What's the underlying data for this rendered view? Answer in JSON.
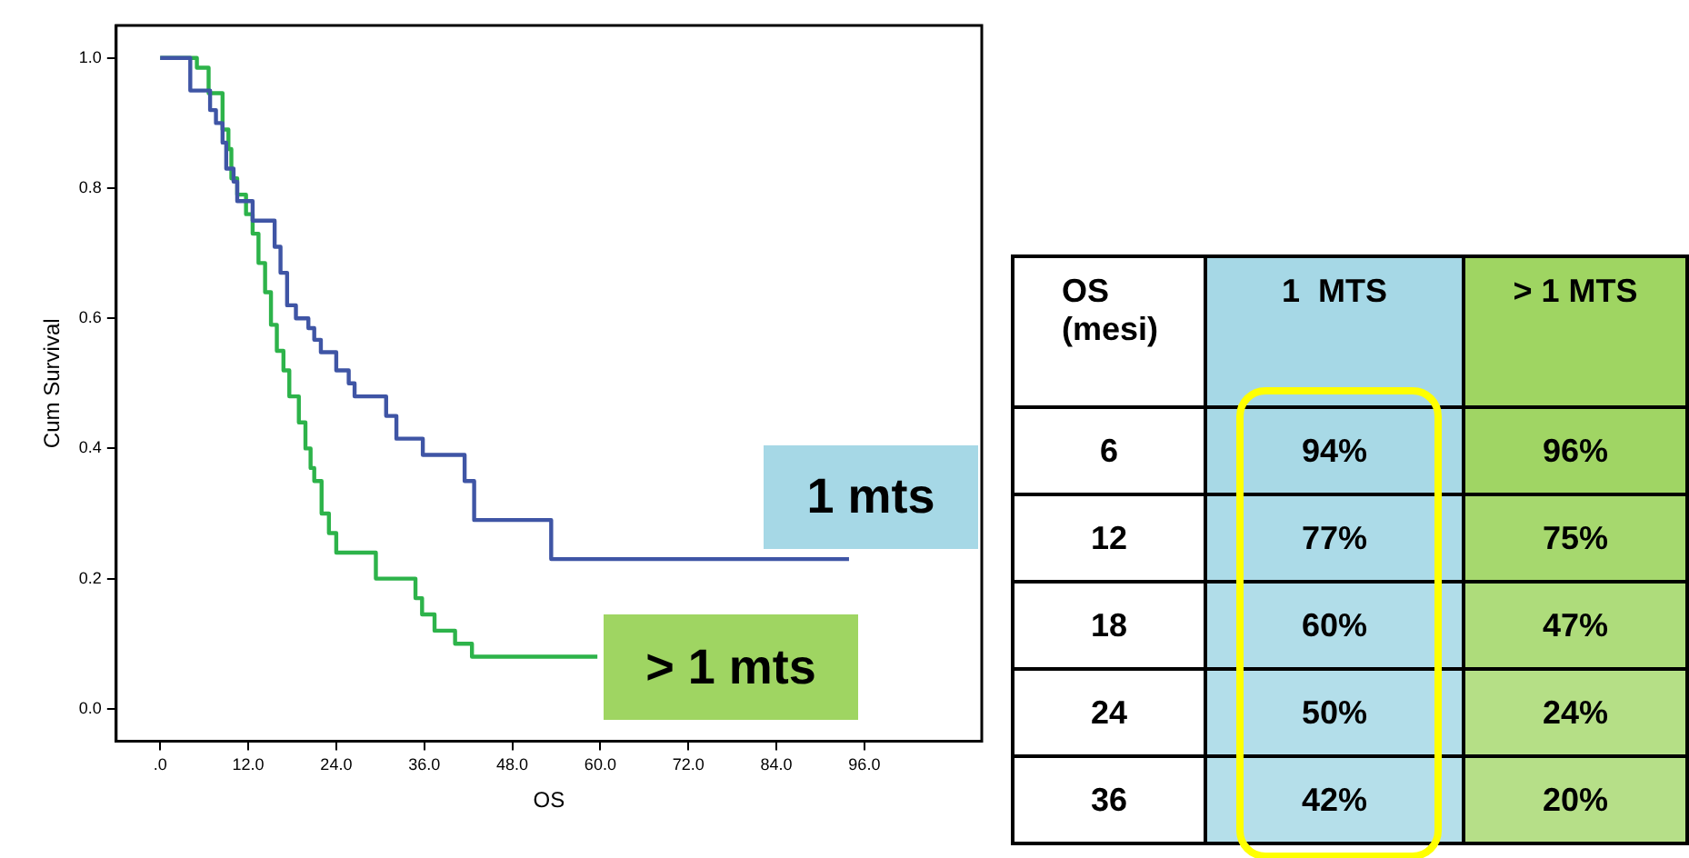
{
  "chart_data": [
    {
      "type": "step",
      "xlabel": "OS",
      "ylabel": "Cum Survival",
      "xlim": [
        -6,
        112
      ],
      "ylim": [
        -0.05,
        1.05
      ],
      "xticks": [
        {
          "value": 0,
          "label": ".0"
        },
        {
          "value": 12,
          "label": "12.0"
        },
        {
          "value": 24,
          "label": "24.0"
        },
        {
          "value": 36,
          "label": "36.0"
        },
        {
          "value": 48,
          "label": "48.0"
        },
        {
          "value": 60,
          "label": "60.0"
        },
        {
          "value": 72,
          "label": "72.0"
        },
        {
          "value": 84,
          "label": "84.0"
        },
        {
          "value": 96,
          "label": "96.0"
        }
      ],
      "yticks": [
        {
          "value": 0,
          "label": "0.0"
        },
        {
          "value": 0.2,
          "label": "0.2"
        },
        {
          "value": 0.4,
          "label": "0.4"
        },
        {
          "value": 0.6,
          "label": "0.6"
        },
        {
          "value": 0.8,
          "label": "0.8"
        },
        {
          "value": 1,
          "label": "1.0"
        }
      ],
      "grid": false,
      "legend": false,
      "series": [
        {
          "name": "1 mts",
          "color": "#3f55a5",
          "x": [
            0,
            4.1,
            6.8,
            7.6,
            8.5,
            9,
            10,
            10.5,
            12.6,
            15.6,
            16.4,
            17.3,
            18.5,
            20.2,
            21,
            21.9,
            24,
            25.7,
            26.5,
            30.8,
            32.2,
            35.8,
            41.5,
            42.8,
            53.3,
            93.9
          ],
          "values": [
            1,
            0.95,
            0.92,
            0.9,
            0.87,
            0.83,
            0.81,
            0.78,
            0.75,
            0.71,
            0.67,
            0.62,
            0.6,
            0.585,
            0.567,
            0.548,
            0.52,
            0.5,
            0.48,
            0.45,
            0.415,
            0.39,
            0.35,
            0.29,
            0.23,
            0.23
          ]
        },
        {
          "name": "> 1 mts",
          "color": "#2db34a",
          "x": [
            0,
            5,
            6.6,
            8.5,
            9.3,
            9.7,
            10.5,
            11.7,
            12.6,
            13.4,
            14.3,
            15.1,
            15.9,
            16.8,
            17.6,
            18.9,
            19.8,
            20.5,
            21,
            22,
            23,
            24,
            25,
            29.4,
            30,
            34.8,
            35.7,
            37.4,
            40.2,
            42.5,
            59.6
          ],
          "values": [
            1,
            0.985,
            0.946,
            0.89,
            0.86,
            0.815,
            0.79,
            0.76,
            0.73,
            0.685,
            0.64,
            0.59,
            0.55,
            0.52,
            0.48,
            0.44,
            0.4,
            0.37,
            0.35,
            0.3,
            0.27,
            0.24,
            0.24,
            0.2,
            0.2,
            0.17,
            0.145,
            0.12,
            0.1,
            0.08,
            0.08
          ]
        }
      ]
    },
    {
      "type": "heatmap",
      "ylabel": "OS (mesi)",
      "categories": [
        "1  MTS",
        "> 1 MTS"
      ],
      "colors": [
        "#a6d8e6",
        "#9fd562"
      ],
      "y_categories": [
        "6",
        "12",
        "18",
        "24",
        "36"
      ],
      "cells": [
        [
          94,
          96
        ],
        [
          77,
          75
        ],
        [
          60,
          47
        ],
        [
          50,
          24
        ],
        [
          42,
          20
        ]
      ],
      "cell_labels": [
        [
          "94%",
          "96%"
        ],
        [
          "77%",
          "75%"
        ],
        [
          "60%",
          "47%"
        ],
        [
          "50%",
          "24%"
        ],
        [
          "42%",
          "20%"
        ]
      ]
    }
  ]
}
